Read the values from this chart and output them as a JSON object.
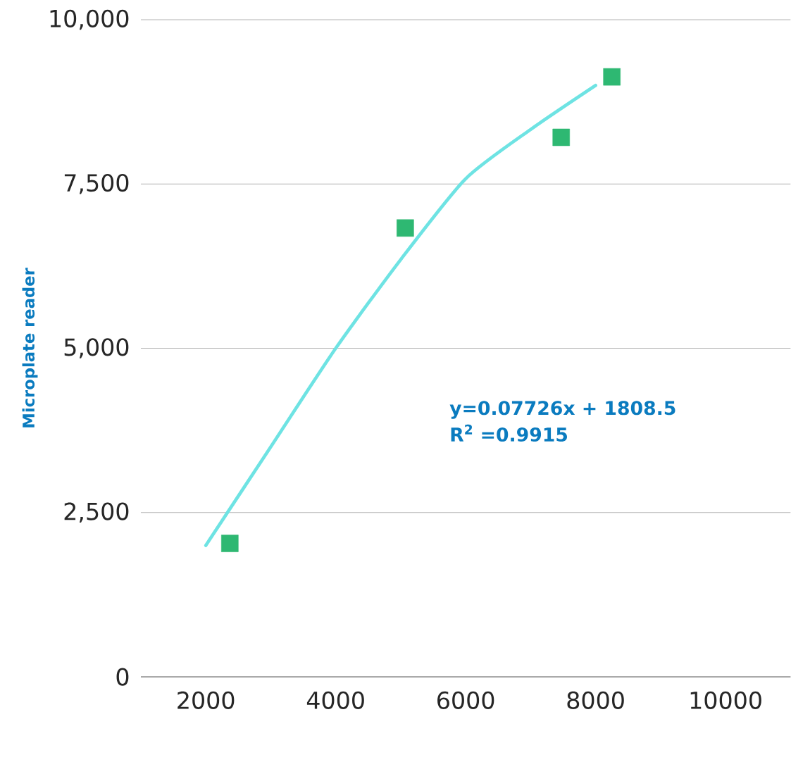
{
  "chart_data": {
    "type": "scatter",
    "ylabel": "Microplate reader",
    "xlim": [
      1000,
      11000
    ],
    "ylim": [
      0,
      10000
    ],
    "xticks": [
      2000,
      4000,
      6000,
      8000,
      10000
    ],
    "yticks": [
      0,
      {
        "value": 2500,
        "label": "2,500"
      },
      {
        "value": 5000,
        "label": "5,000"
      },
      {
        "value": 7500,
        "label": "7,500"
      },
      {
        "value": 10000,
        "label": "10,000"
      }
    ],
    "grid": "y",
    "marker": "square",
    "series": [
      {
        "color": "#2eb872",
        "x": [
          2370,
          5070,
          7470,
          8250
        ],
        "values": [
          2030,
          6830,
          8210,
          9130
        ]
      },
      {
        "type": "line",
        "color": "#6ee3e3",
        "marker": "none",
        "x": [
          2000,
          3000,
          4000,
          5000,
          6000,
          7000,
          8000
        ],
        "values": [
          2000,
          3500,
          5000,
          6350,
          7580,
          8330,
          9000
        ]
      }
    ],
    "annotations": [
      "y=0.07726x + 1808.5",
      "R$^{2}$ =0.9915"
    ]
  }
}
